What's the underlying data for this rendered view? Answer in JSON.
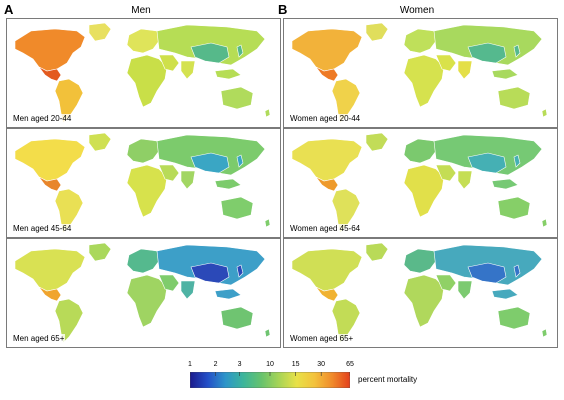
{
  "columns": [
    {
      "letter": "A",
      "title": "Men"
    },
    {
      "letter": "B",
      "title": "Women"
    }
  ],
  "panels": [
    {
      "label": "Men aged 20-44",
      "palette": {
        "na": "#f08a2a",
        "mx": "#e35a1f",
        "sa": "#f2c13a",
        "eu": "#dfe45a",
        "af": "#c9df48",
        "me": "#cfe04a",
        "asia": "#b6dd55",
        "china": "#56b98a",
        "india": "#d4e250",
        "aus": "#b0db5c",
        "greenland": "#e8e060"
      }
    },
    {
      "label": "Women aged 20-44",
      "palette": {
        "na": "#f2b23a",
        "mx": "#ee7a25",
        "sa": "#f0d24a",
        "eu": "#bfe05a",
        "af": "#d6e24e",
        "me": "#d9e24a",
        "asia": "#a8d95e",
        "china": "#55b98e",
        "india": "#e4df48",
        "aus": "#b8dc58",
        "greenland": "#e0de5c"
      }
    },
    {
      "label": "Men aged 45-64",
      "palette": {
        "na": "#f3dd4a",
        "mx": "#e8852a",
        "sa": "#e9e054",
        "eu": "#8fcf66",
        "af": "#d7e24c",
        "me": "#b8db58",
        "asia": "#7ccb6c",
        "china": "#3aa6c4",
        "india": "#a2d663",
        "aus": "#7fcd6c",
        "greenland": "#cfe052"
      }
    },
    {
      "label": "Women aged 45-64",
      "palette": {
        "na": "#e9e052",
        "mx": "#ee9a2c",
        "sa": "#dfe15a",
        "eu": "#7bc96e",
        "af": "#e1e04a",
        "me": "#c4dd54",
        "asia": "#76c974",
        "china": "#45b0b4",
        "india": "#c5de54",
        "aus": "#86cf68",
        "greenland": "#c2dc58"
      }
    },
    {
      "label": "Men  aged 65+",
      "palette": {
        "na": "#d9e153",
        "mx": "#f0a42e",
        "sa": "#b8da58",
        "eu": "#55b98e",
        "af": "#9fd462",
        "me": "#7fcc6c",
        "asia": "#3d9fc8",
        "china": "#2b49b8",
        "india": "#4fb3a4",
        "aus": "#6fc471",
        "greenland": "#aad85c"
      }
    },
    {
      "label": "Women aged 65+",
      "palette": {
        "na": "#d0df55",
        "mx": "#f0b232",
        "sa": "#c2dc56",
        "eu": "#5ab98a",
        "af": "#b0d85c",
        "me": "#90d166",
        "asia": "#47a9bd",
        "china": "#3574c8",
        "india": "#7cca70",
        "aus": "#7ecc6c",
        "greenland": "#b9da58"
      }
    }
  ],
  "legend": {
    "ticks": [
      "1",
      "2",
      "3",
      "10",
      "15",
      "30",
      "65"
    ],
    "title": "percent mortality",
    "colors": [
      "#1b1a8c",
      "#2450c8",
      "#2d95c9",
      "#3cb59b",
      "#66c26e",
      "#a7d456",
      "#e8e148",
      "#f3c23c",
      "#f08a2a",
      "#e3401c"
    ]
  }
}
